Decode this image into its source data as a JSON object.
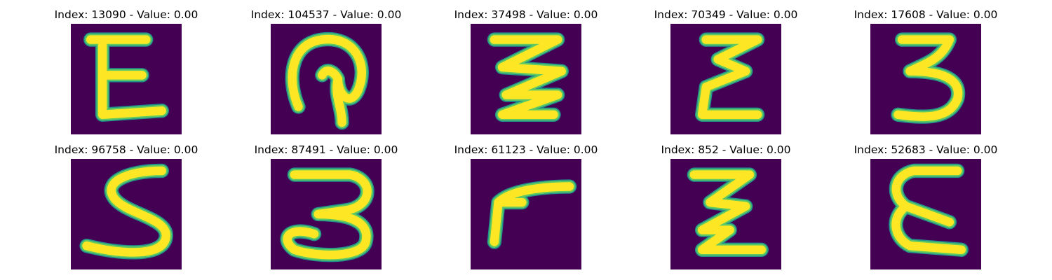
{
  "colors": {
    "background": "#440154",
    "stroke_edge": "#21918c",
    "stroke_core": "#fde725",
    "stroke_mid": "#5ec962"
  },
  "panels": [
    {
      "title": "Index: 13090 - Value: 0.00",
      "glyph": "E"
    },
    {
      "title": "Index: 104537 - Value: 0.00",
      "glyph": "loop-rotated"
    },
    {
      "title": "Index: 37498 - Value: 0.00",
      "glyph": "zigzag"
    },
    {
      "title": "Index: 70349 - Value: 0.00",
      "glyph": "epsilon-zigzag"
    },
    {
      "title": "Index: 17608 - Value: 0.00",
      "glyph": "3"
    },
    {
      "title": "Index: 96758 - Value: 0.00",
      "glyph": "S"
    },
    {
      "title": "Index: 87491 - Value: 0.00",
      "glyph": "3-rounded"
    },
    {
      "title": "Index: 61123 - Value: 0.00",
      "glyph": "L-rotated"
    },
    {
      "title": "Index: 852 - Value: 0.00",
      "glyph": "Z-zigzag"
    },
    {
      "title": "Index: 52683 - Value: 0.00",
      "glyph": "E-curved"
    }
  ]
}
